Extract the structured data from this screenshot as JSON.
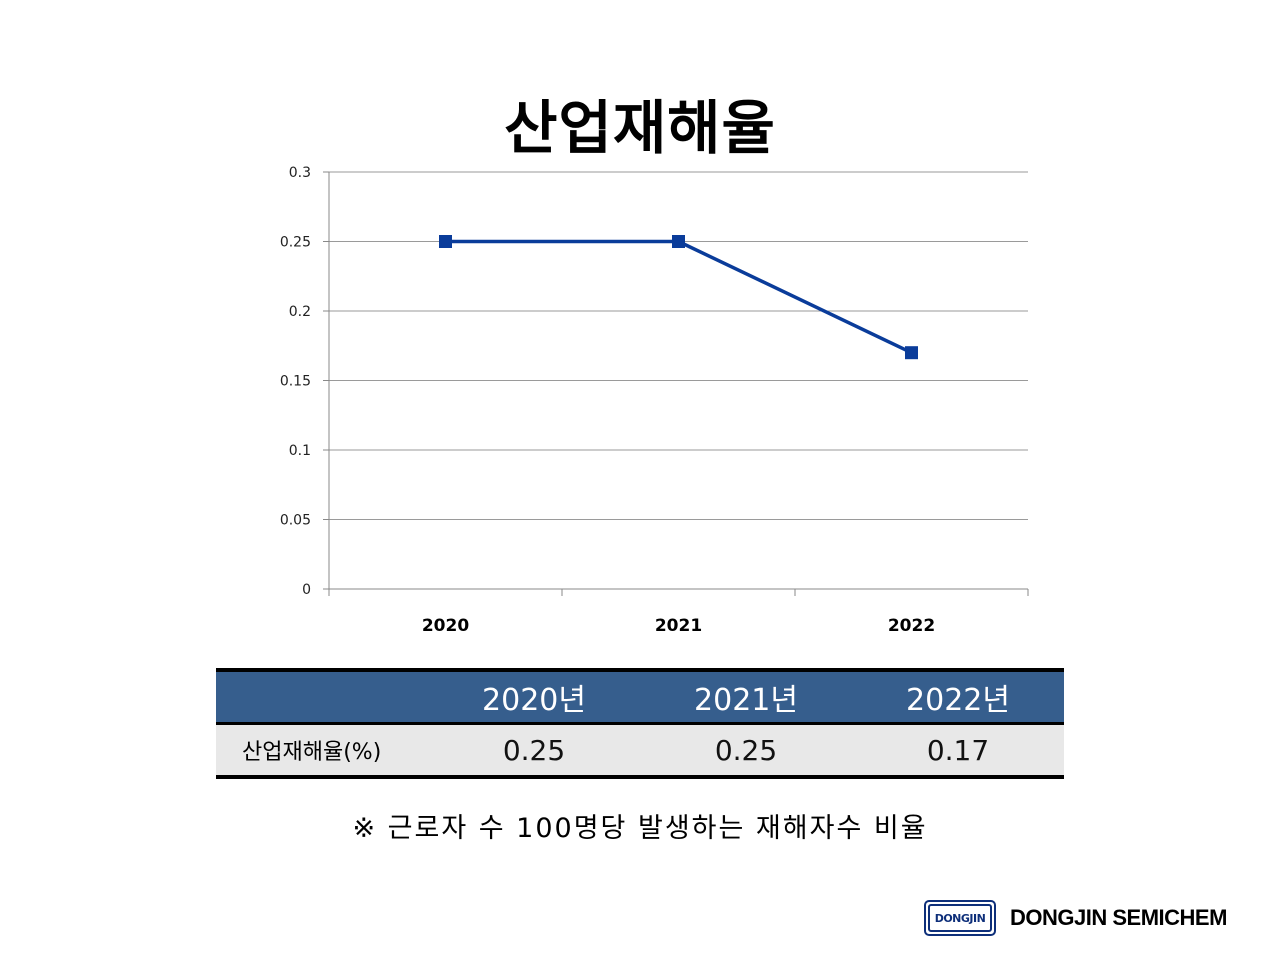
{
  "chart_data": {
    "type": "line",
    "title": "산업재해율",
    "categories": [
      "2020",
      "2021",
      "2022"
    ],
    "series": [
      {
        "values": [
          0.25,
          0.25,
          0.17
        ]
      }
    ],
    "yticks": [
      "0",
      "0.05",
      "0.1",
      "0.15",
      "0.2",
      "0.25",
      "0.3"
    ],
    "ylim": [
      0,
      0.3
    ],
    "grid": true,
    "legend": "none",
    "line_color": "#0a3c9a",
    "marker": "square"
  },
  "table": {
    "headers": [
      "",
      "2020년",
      "2021년",
      "2022년"
    ],
    "row_label": "산업재해율(%)",
    "values": [
      "0.25",
      "0.25",
      "0.17"
    ],
    "header_color": "#365e8d"
  },
  "footnote": "※ 근로자 수 100명당 발생하는 재해자수 비율",
  "logo": {
    "badge_text": "DONGJIN",
    "company_name": "DONGJIN SEMICHEM",
    "brand_color": "#0e2f7a"
  }
}
